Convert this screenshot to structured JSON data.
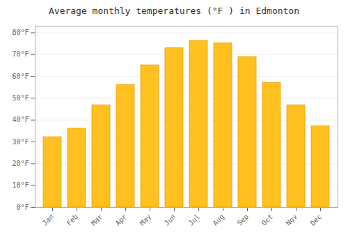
{
  "chart_data": {
    "type": "bar",
    "title": "Average monthly temperatures (°F ) in Edmonton",
    "categories": [
      "Jan",
      "Feb",
      "Mar",
      "Apr",
      "May",
      "Jun",
      "Jul",
      "Aug",
      "Sep",
      "Oct",
      "Nov",
      "Dec"
    ],
    "values": [
      32.2,
      36.1,
      46.8,
      56.1,
      65.1,
      72.9,
      76.3,
      75.2,
      68.9,
      57.0,
      46.8,
      37.2
    ],
    "color": "#FFC020",
    "ylim": [
      0,
      83
    ],
    "yticks": [
      {
        "value": 0,
        "label": "0°F"
      },
      {
        "value": 10,
        "label": "10°F"
      },
      {
        "value": 20,
        "label": "20°F"
      },
      {
        "value": 30,
        "label": "30°F"
      },
      {
        "value": 40,
        "label": "40°F"
      },
      {
        "value": 50,
        "label": "50°F"
      },
      {
        "value": 60,
        "label": "60°F"
      },
      {
        "value": 70,
        "label": "70°F"
      },
      {
        "value": 80,
        "label": "80°F"
      }
    ],
    "grid": true
  }
}
